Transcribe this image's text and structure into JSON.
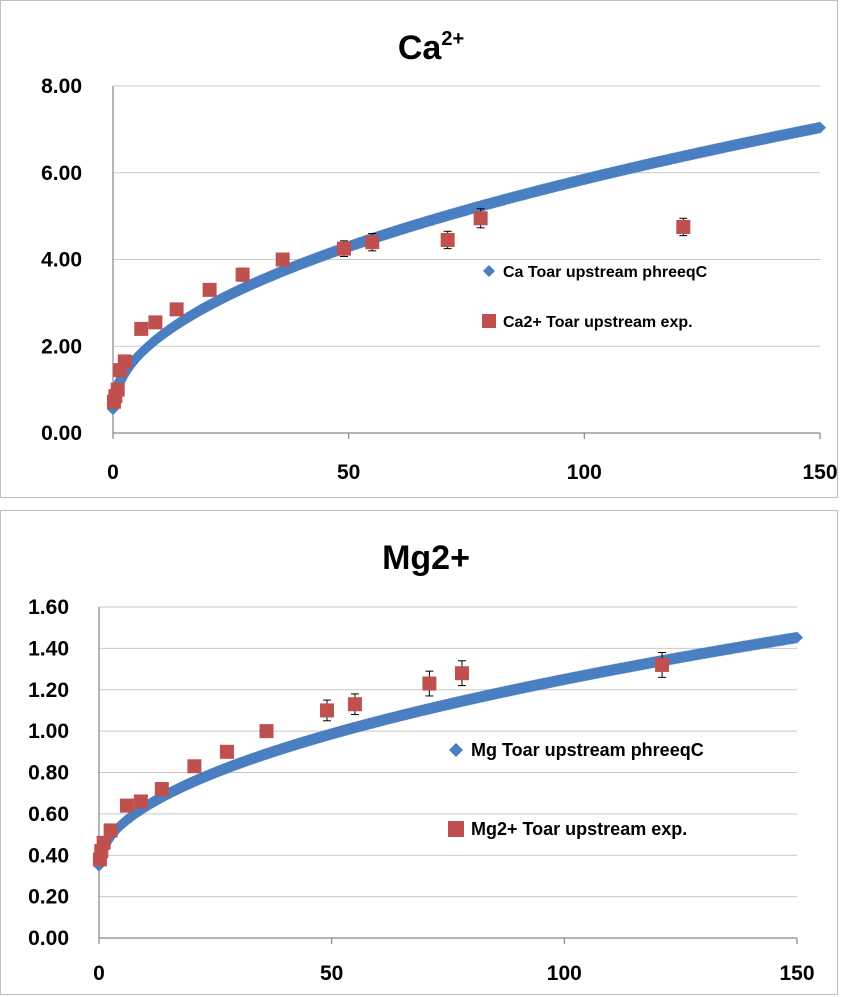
{
  "colors": {
    "model": "#4a7fc1",
    "experiment": "#c0504d",
    "gridline": "#c8c8c8",
    "axis": "#868686"
  },
  "chart_data": [
    {
      "type": "scatter",
      "title_main": "Ca",
      "title_sup": "2+",
      "xlim": [
        0,
        150
      ],
      "ylim": [
        0,
        8
      ],
      "x_ticks": [
        "0",
        "50",
        "100",
        "150"
      ],
      "y_ticks": [
        "0.00",
        "2.00",
        "4.00",
        "6.00",
        "8.00"
      ],
      "grid": "horizontal",
      "legend_position": "right-middle",
      "series": [
        {
          "name": "Ca Toar upstream phreeqC",
          "marker": "diamond",
          "model": {
            "form": "a + b*sqrt(x)",
            "a": 0.55,
            "b": 0.53,
            "x_start": 0,
            "x_end": 150
          }
        },
        {
          "name": "Ca2+ Toar upstream exp.",
          "marker": "square",
          "points": [
            {
              "x": 0.2,
              "y": 0.72,
              "err": 0.08
            },
            {
              "x": 0.5,
              "y": 0.85,
              "err": 0.08
            },
            {
              "x": 1,
              "y": 1.0,
              "err": 0.08
            },
            {
              "x": 1.5,
              "y": 1.45,
              "err": 0.08
            },
            {
              "x": 2.5,
              "y": 1.65,
              "err": 0.1
            },
            {
              "x": 6,
              "y": 2.4,
              "err": 0.1
            },
            {
              "x": 9,
              "y": 2.55,
              "err": 0.1
            },
            {
              "x": 13.5,
              "y": 2.85,
              "err": 0.1
            },
            {
              "x": 20.5,
              "y": 3.3,
              "err": 0.12
            },
            {
              "x": 27.5,
              "y": 3.65,
              "err": 0.15
            },
            {
              "x": 36,
              "y": 4.0,
              "err": 0.15
            },
            {
              "x": 49,
              "y": 4.25,
              "err": 0.18
            },
            {
              "x": 55,
              "y": 4.4,
              "err": 0.2
            },
            {
              "x": 71,
              "y": 4.45,
              "err": 0.2
            },
            {
              "x": 78,
              "y": 4.95,
              "err": 0.22
            },
            {
              "x": 121,
              "y": 4.75,
              "err": 0.2
            }
          ]
        }
      ]
    },
    {
      "type": "scatter",
      "title_main": "Mg2+",
      "title_sup": "",
      "xlim": [
        0,
        150
      ],
      "ylim": [
        0,
        1.6
      ],
      "x_ticks": [
        "0",
        "50",
        "100",
        "150"
      ],
      "y_ticks": [
        "0.00",
        "0.20",
        "0.40",
        "0.60",
        "0.80",
        "1.00",
        "1.20",
        "1.40",
        "1.60"
      ],
      "grid": "horizontal",
      "legend_position": "right-middle",
      "series": [
        {
          "name": "Mg Toar upstream phreeqC",
          "marker": "diamond",
          "model": {
            "form": "a + b*sqrt(x)",
            "a": 0.35,
            "b": 0.09,
            "x_start": 0,
            "x_end": 150
          }
        },
        {
          "name": "Mg2+ Toar upstream exp.",
          "marker": "square",
          "points": [
            {
              "x": 0.2,
              "y": 0.38,
              "err": 0.02
            },
            {
              "x": 0.5,
              "y": 0.42,
              "err": 0.02
            },
            {
              "x": 1,
              "y": 0.46,
              "err": 0.02
            },
            {
              "x": 2.5,
              "y": 0.52,
              "err": 0.02
            },
            {
              "x": 6,
              "y": 0.64,
              "err": 0.02
            },
            {
              "x": 9,
              "y": 0.66,
              "err": 0.02
            },
            {
              "x": 13.5,
              "y": 0.72,
              "err": 0.025
            },
            {
              "x": 20.5,
              "y": 0.83,
              "err": 0.025
            },
            {
              "x": 27.5,
              "y": 0.9,
              "err": 0.03
            },
            {
              "x": 36,
              "y": 1.0,
              "err": 0.03
            },
            {
              "x": 49,
              "y": 1.1,
              "err": 0.05
            },
            {
              "x": 55,
              "y": 1.13,
              "err": 0.05
            },
            {
              "x": 71,
              "y": 1.23,
              "err": 0.06
            },
            {
              "x": 78,
              "y": 1.28,
              "err": 0.06
            },
            {
              "x": 121,
              "y": 1.32,
              "err": 0.06
            }
          ]
        }
      ]
    }
  ]
}
